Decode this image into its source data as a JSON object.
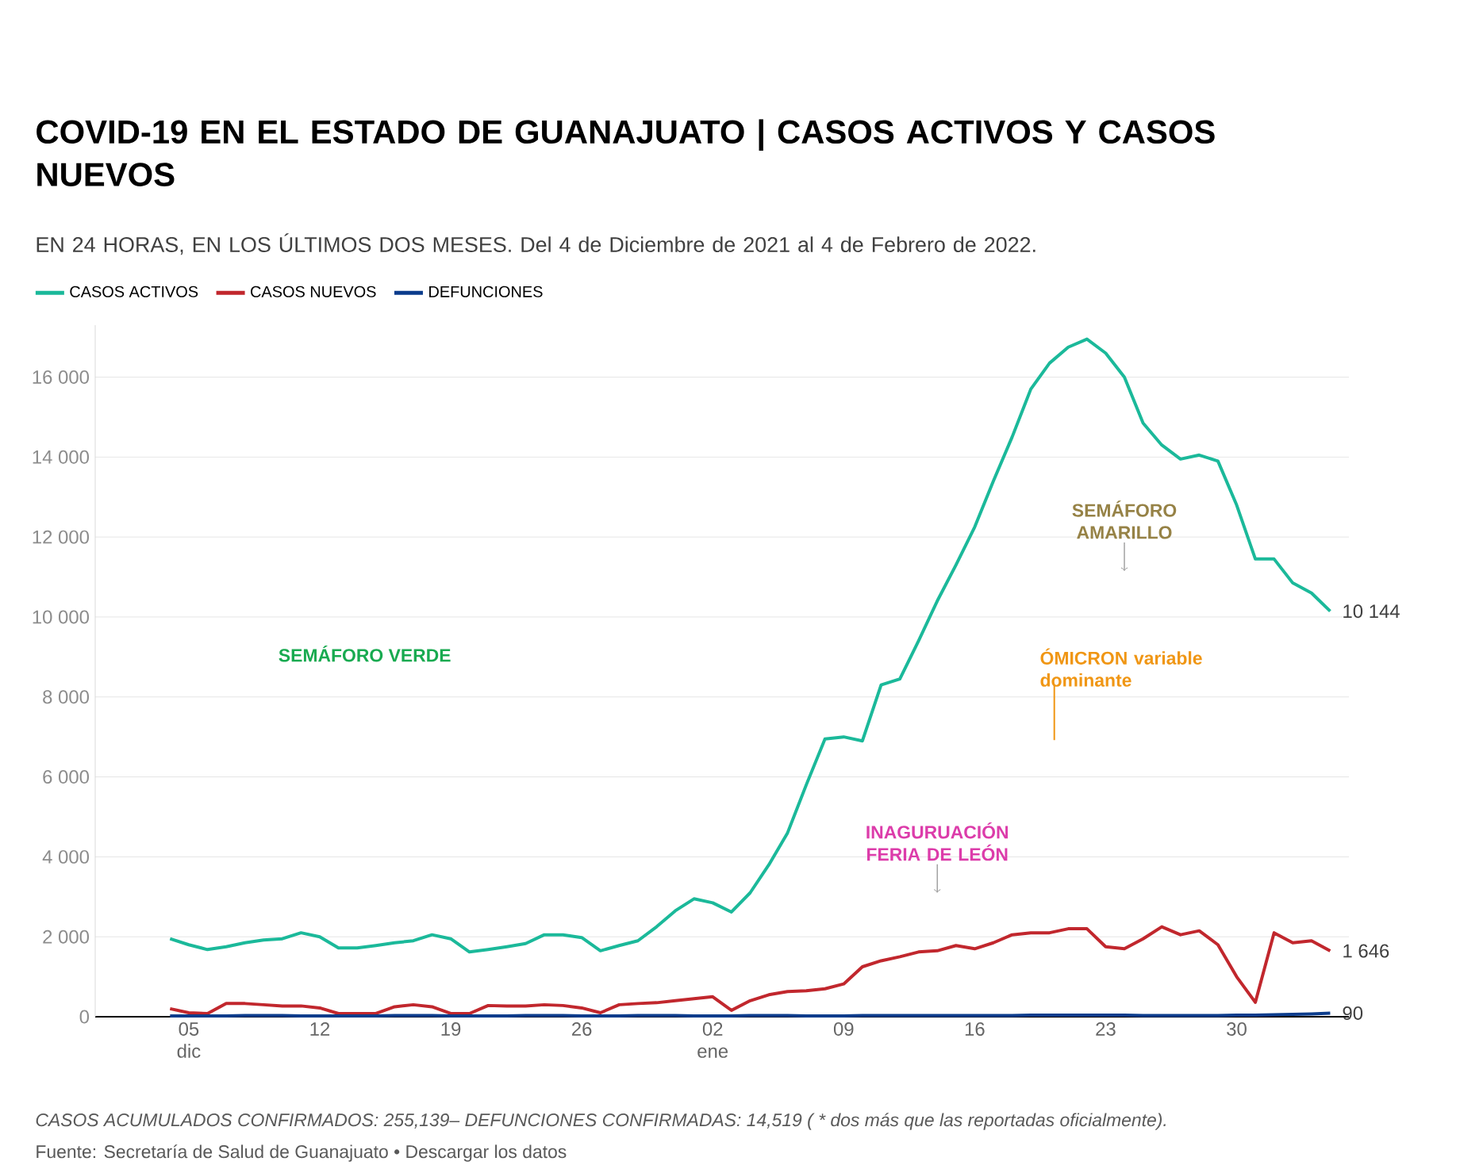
{
  "chart_data": {
    "type": "line",
    "title": "COVID-19 EN EL ESTADO DE GUANAJUATO | CASOS ACTIVOS Y CASOS NUEVOS",
    "subtitle": "EN 24 HORAS, EN LOS ÚLTIMOS DOS MESES. Del 4 de Diciembre de 2021 al 4 de Febrero de 2022.",
    "x": [
      "2021-12-04",
      "2021-12-05",
      "2021-12-06",
      "2021-12-07",
      "2021-12-08",
      "2021-12-09",
      "2021-12-10",
      "2021-12-11",
      "2021-12-12",
      "2021-12-13",
      "2021-12-14",
      "2021-12-15",
      "2021-12-16",
      "2021-12-17",
      "2021-12-18",
      "2021-12-19",
      "2021-12-20",
      "2021-12-21",
      "2021-12-22",
      "2021-12-23",
      "2021-12-24",
      "2021-12-25",
      "2021-12-26",
      "2021-12-27",
      "2021-12-28",
      "2021-12-29",
      "2021-12-30",
      "2021-12-31",
      "2022-01-01",
      "2022-01-02",
      "2022-01-03",
      "2022-01-04",
      "2022-01-05",
      "2022-01-06",
      "2022-01-07",
      "2022-01-08",
      "2022-01-09",
      "2022-01-10",
      "2022-01-11",
      "2022-01-12",
      "2022-01-13",
      "2022-01-14",
      "2022-01-15",
      "2022-01-16",
      "2022-01-17",
      "2022-01-18",
      "2022-01-19",
      "2022-01-20",
      "2022-01-21",
      "2022-01-22",
      "2022-01-23",
      "2022-01-24",
      "2022-01-25",
      "2022-01-26",
      "2022-01-27",
      "2022-01-28",
      "2022-01-29",
      "2022-01-30",
      "2022-01-31",
      "2022-02-01",
      "2022-02-02",
      "2022-02-03",
      "2022-02-04"
    ],
    "series": [
      {
        "name": "CASOS ACTIVOS",
        "color": "#1bb99a",
        "values": [
          1950,
          1800,
          1680,
          1750,
          1850,
          1920,
          1950,
          2100,
          2000,
          1720,
          1720,
          1780,
          1850,
          1900,
          2050,
          1950,
          1620,
          1680,
          1750,
          1830,
          2050,
          2050,
          1980,
          1650,
          1780,
          1900,
          2250,
          2650,
          2950,
          2850,
          2620,
          3100,
          3800,
          4600,
          5800,
          6950,
          7000,
          6900,
          8300,
          8450,
          9400,
          10400,
          11300,
          12250,
          13400,
          14500,
          15700,
          16350,
          16750,
          16950,
          16600,
          16000,
          14850,
          14300,
          13950,
          14050,
          13900,
          12800,
          11450,
          11450,
          10850,
          10600,
          10144
        ],
        "value_labels": [
          null,
          null,
          null,
          null,
          null,
          null,
          null,
          null,
          null,
          null,
          null,
          null,
          null,
          null,
          null,
          null,
          null,
          null,
          null,
          null,
          null,
          null,
          null,
          null,
          null,
          null,
          null,
          null,
          null,
          null,
          null,
          null,
          null,
          null,
          null,
          null,
          null,
          null,
          null,
          null,
          null,
          null,
          null,
          null,
          null,
          null,
          null,
          null,
          null,
          null,
          null,
          null,
          null,
          null,
          null,
          null,
          null,
          null,
          null,
          null,
          null,
          null,
          "10 144"
        ]
      },
      {
        "name": "CASOS NUEVOS",
        "color": "#c1272d",
        "values": [
          200,
          100,
          80,
          330,
          330,
          300,
          270,
          270,
          220,
          80,
          80,
          80,
          250,
          300,
          250,
          80,
          80,
          280,
          270,
          270,
          300,
          280,
          220,
          100,
          300,
          330,
          350,
          400,
          450,
          500,
          160,
          400,
          550,
          630,
          650,
          700,
          820,
          1250,
          1400,
          1500,
          1620,
          1650,
          1780,
          1700,
          1850,
          2050,
          2100,
          2100,
          2200,
          2200,
          1750,
          1700,
          1950,
          2250,
          2050,
          2150,
          1800,
          1000,
          360,
          2100,
          1850,
          1900,
          1646
        ],
        "value_labels": [
          null,
          null,
          null,
          null,
          null,
          null,
          null,
          null,
          null,
          null,
          null,
          null,
          null,
          null,
          null,
          null,
          null,
          null,
          null,
          null,
          null,
          null,
          null,
          null,
          null,
          null,
          null,
          null,
          null,
          null,
          null,
          null,
          null,
          null,
          null,
          null,
          null,
          null,
          null,
          null,
          null,
          null,
          null,
          null,
          null,
          null,
          null,
          null,
          null,
          null,
          null,
          null,
          null,
          null,
          null,
          null,
          null,
          null,
          null,
          null,
          null,
          null,
          "1 646"
        ]
      },
      {
        "name": "DEFUNCIONES",
        "color": "#0b3c8c",
        "values": [
          20,
          20,
          20,
          20,
          30,
          30,
          30,
          20,
          20,
          20,
          20,
          20,
          30,
          30,
          30,
          20,
          20,
          20,
          20,
          30,
          30,
          30,
          20,
          20,
          20,
          30,
          30,
          30,
          20,
          20,
          20,
          30,
          30,
          30,
          20,
          20,
          20,
          30,
          30,
          30,
          30,
          30,
          30,
          30,
          30,
          30,
          40,
          40,
          40,
          40,
          40,
          40,
          30,
          30,
          30,
          30,
          30,
          40,
          40,
          50,
          60,
          70,
          90
        ],
        "value_labels": [
          null,
          null,
          null,
          null,
          null,
          null,
          null,
          null,
          null,
          null,
          null,
          null,
          null,
          null,
          null,
          null,
          null,
          null,
          null,
          null,
          null,
          null,
          null,
          null,
          null,
          null,
          null,
          null,
          null,
          null,
          null,
          null,
          null,
          null,
          null,
          null,
          null,
          null,
          null,
          null,
          null,
          null,
          null,
          null,
          null,
          null,
          null,
          null,
          null,
          null,
          null,
          null,
          null,
          null,
          null,
          null,
          null,
          null,
          null,
          null,
          null,
          null,
          "90"
        ]
      }
    ],
    "xlim": [
      "2021-11-30",
      "2022-02-05"
    ],
    "xticks": [
      {
        "value": "2021-12-05",
        "label": "05 dic"
      },
      {
        "value": "2021-12-12",
        "label": "12"
      },
      {
        "value": "2021-12-19",
        "label": "19"
      },
      {
        "value": "2021-12-26",
        "label": "26"
      },
      {
        "value": "2022-01-02",
        "label": "02 ene"
      },
      {
        "value": "2022-01-09",
        "label": "09"
      },
      {
        "value": "2022-01-16",
        "label": "16"
      },
      {
        "value": "2022-01-23",
        "label": "23"
      },
      {
        "value": "2022-01-30",
        "label": "30"
      }
    ],
    "ylim": [
      0,
      17300
    ],
    "yticks": [
      0,
      {
        "value": 2000,
        "label": "2 000"
      },
      {
        "value": 4000,
        "label": "4 000"
      },
      {
        "value": 6000,
        "label": "6 000"
      },
      {
        "value": 8000,
        "label": "8 000"
      },
      {
        "value": 10000,
        "label": "10 000"
      },
      {
        "value": 12000,
        "label": "12 000"
      },
      {
        "value": 14000,
        "label": "14 000"
      },
      {
        "value": 16000,
        "label": "16 000"
      }
    ],
    "grid": "y",
    "legend": "top left",
    "marker": "none",
    "line_style": "solid",
    "annotations": [
      "SEMÁFORO VERDE",
      {
        "text": "SEMÁFORO AMARILLO",
        "x": "2022-01-24",
        "y": 11150
      },
      "ÓMICRON variable dominante",
      {
        "text": "INAGURUACIÓN FERIA DE LEÓN",
        "x": "2022-01-14",
        "y": 3100
      },
      "CASOS ACUMULADOS CONFIRMADOS: 255,139– DEFUNCIONES CONFIRMADAS: 14,519 ( * dos más que las reportadas oficialmente).",
      "Fuente: Secretaría de Salud de Guanajuato • Descargar los datos"
    ]
  }
}
